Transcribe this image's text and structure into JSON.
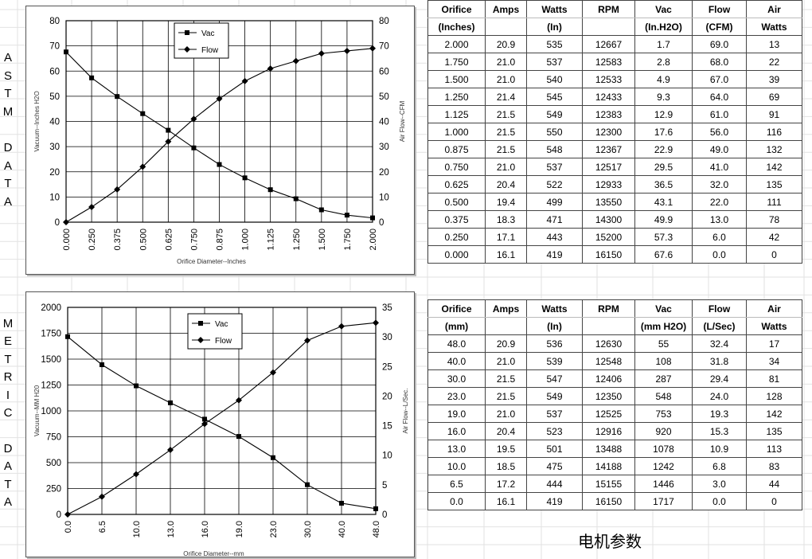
{
  "astm": {
    "side_label": [
      "A",
      "S",
      "T",
      "M",
      "",
      "D",
      "A",
      "T",
      "A"
    ],
    "table": {
      "header_top": [
        "Orifice",
        "Amps",
        "Watts",
        "RPM",
        "Vac",
        "Flow",
        "Air"
      ],
      "header_bottom": [
        "(Inches)",
        "",
        "(In)",
        "",
        "(In.H2O)",
        "(CFM)",
        "Watts"
      ],
      "rows": [
        [
          "2.000",
          "20.9",
          "535",
          "12667",
          "1.7",
          "69.0",
          "13"
        ],
        [
          "1.750",
          "21.0",
          "537",
          "12583",
          "2.8",
          "68.0",
          "22"
        ],
        [
          "1.500",
          "21.0",
          "540",
          "12533",
          "4.9",
          "67.0",
          "39"
        ],
        [
          "1.250",
          "21.4",
          "545",
          "12433",
          "9.3",
          "64.0",
          "69"
        ],
        [
          "1.125",
          "21.5",
          "549",
          "12383",
          "12.9",
          "61.0",
          "91"
        ],
        [
          "1.000",
          "21.5",
          "550",
          "12300",
          "17.6",
          "56.0",
          "116"
        ],
        [
          "0.875",
          "21.5",
          "548",
          "12367",
          "22.9",
          "49.0",
          "132"
        ],
        [
          "0.750",
          "21.0",
          "537",
          "12517",
          "29.5",
          "41.0",
          "142"
        ],
        [
          "0.625",
          "20.4",
          "522",
          "12933",
          "36.5",
          "32.0",
          "135"
        ],
        [
          "0.500",
          "19.4",
          "499",
          "13550",
          "43.1",
          "22.0",
          "111"
        ],
        [
          "0.375",
          "18.3",
          "471",
          "14300",
          "49.9",
          "13.0",
          "78"
        ],
        [
          "0.250",
          "17.1",
          "443",
          "15200",
          "57.3",
          "6.0",
          "42"
        ],
        [
          "0.000",
          "16.1",
          "419",
          "16150",
          "67.6",
          "0.0",
          "0"
        ]
      ]
    }
  },
  "metric": {
    "side_label": [
      "M",
      "E",
      "T",
      "R",
      "I",
      "C",
      "",
      "D",
      "A",
      "T",
      "A"
    ],
    "table": {
      "header_top": [
        "Orifice",
        "Amps",
        "Watts",
        "RPM",
        "Vac",
        "Flow",
        "Air"
      ],
      "header_bottom": [
        "(mm)",
        "",
        "(In)",
        "",
        "(mm H2O)",
        "(L/Sec)",
        "Watts"
      ],
      "rows": [
        [
          "48.0",
          "20.9",
          "536",
          "12630",
          "55",
          "32.4",
          "17"
        ],
        [
          "40.0",
          "21.0",
          "539",
          "12548",
          "108",
          "31.8",
          "34"
        ],
        [
          "30.0",
          "21.5",
          "547",
          "12406",
          "287",
          "29.4",
          "81"
        ],
        [
          "23.0",
          "21.5",
          "549",
          "12350",
          "548",
          "24.0",
          "128"
        ],
        [
          "19.0",
          "21.0",
          "537",
          "12525",
          "753",
          "19.3",
          "142"
        ],
        [
          "16.0",
          "20.4",
          "523",
          "12916",
          "920",
          "15.3",
          "135"
        ],
        [
          "13.0",
          "19.5",
          "501",
          "13488",
          "1078",
          "10.9",
          "113"
        ],
        [
          "10.0",
          "18.5",
          "475",
          "14188",
          "1242",
          "6.8",
          "83"
        ],
        [
          "6.5",
          "17.2",
          "444",
          "15155",
          "1446",
          "3.0",
          "44"
        ],
        [
          "0.0",
          "16.1",
          "419",
          "16150",
          "1717",
          "0.0",
          "0"
        ]
      ]
    }
  },
  "caption": "电机参数",
  "chart_data": [
    {
      "type": "line",
      "categories": [
        "0.000",
        "0.250",
        "0.375",
        "0.500",
        "0.625",
        "0.750",
        "0.875",
        "1.000",
        "1.125",
        "1.250",
        "1.500",
        "1.750",
        "2.000"
      ],
      "series": [
        {
          "name": "Vac",
          "axis": "left",
          "marker": "square",
          "values": [
            67.6,
            57.3,
            49.9,
            43.1,
            36.5,
            29.5,
            22.9,
            17.6,
            12.9,
            9.3,
            4.9,
            2.8,
            1.7
          ]
        },
        {
          "name": "Flow",
          "axis": "right",
          "marker": "diamond",
          "values": [
            0,
            6,
            13,
            22,
            32,
            41,
            49,
            56,
            61,
            64,
            67,
            68,
            69
          ]
        }
      ],
      "xlabel": "Orifice Diameter--Inches",
      "ylabel": "Vacuum--Inches H2O",
      "y2label": "Air Flow--CFM",
      "ylim": [
        0,
        80
      ],
      "y2lim": [
        0,
        80
      ],
      "yticks": [
        0,
        10,
        20,
        30,
        40,
        50,
        60,
        70,
        80
      ],
      "y2ticks": [
        0,
        10,
        20,
        30,
        40,
        50,
        60,
        70,
        80
      ],
      "grid": true,
      "legend": "top-center"
    },
    {
      "type": "line",
      "categories": [
        "0.0",
        "6.5",
        "10.0",
        "13.0",
        "16.0",
        "19.0",
        "23.0",
        "30.0",
        "40.0",
        "48.0"
      ],
      "series": [
        {
          "name": "Vac",
          "axis": "left",
          "marker": "square",
          "values": [
            1717,
            1446,
            1242,
            1078,
            920,
            753,
            548,
            287,
            108,
            55
          ]
        },
        {
          "name": "Flow",
          "axis": "right",
          "marker": "diamond",
          "values": [
            0,
            3.0,
            6.8,
            10.9,
            15.3,
            19.3,
            24.0,
            29.4,
            31.8,
            32.4
          ]
        }
      ],
      "xlabel": "Orifice Diameter--mm",
      "ylabel": "Vacuum--MM H20",
      "y2label": "Air Flow--L/Sec.",
      "ylim": [
        0,
        2000
      ],
      "y2lim": [
        0,
        35
      ],
      "yticks": [
        0,
        250,
        500,
        750,
        1000,
        1250,
        1500,
        1750,
        2000
      ],
      "y2ticks": [
        0,
        5,
        10,
        15,
        20,
        25,
        30,
        35
      ],
      "grid": true,
      "legend": "top-center"
    }
  ]
}
